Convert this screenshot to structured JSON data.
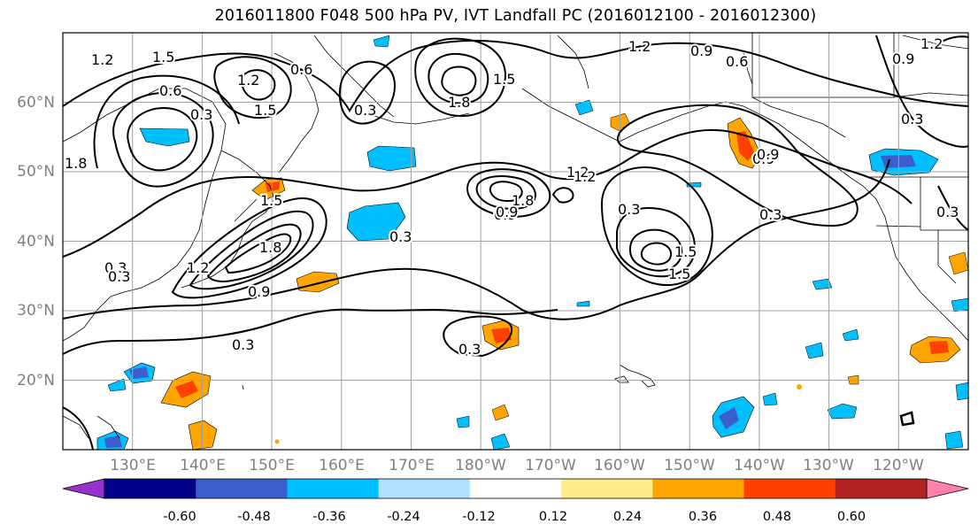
{
  "title": "2016011800 F048 500 hPa PV, IVT Landfall PC (2016012100 - 2016012300)",
  "lat_labels": [
    "60°N",
    "50°N",
    "40°N",
    "30°N",
    "20°N"
  ],
  "lon_labels": [
    "130°E",
    "140°E",
    "150°E",
    "160°E",
    "170°E",
    "180°W",
    "170°W",
    "160°W",
    "150°W",
    "140°W",
    "130°W",
    "120°W"
  ],
  "map_extent": {
    "lon_min": 120,
    "lon_max": 250,
    "lat_min": 10,
    "lat_max": 70,
    "grid_lons": [
      130,
      140,
      150,
      160,
      170,
      180,
      190,
      200,
      210,
      220,
      230,
      240
    ],
    "grid_lats": [
      20,
      30,
      40,
      50,
      60
    ]
  },
  "contour_labels": [
    "1.2",
    "1.5",
    "1.2",
    "0.6",
    "1.5",
    "1.8",
    "1.5",
    "1.2",
    "0.9",
    "0.6",
    "0.9",
    "0.3",
    "0.6",
    "0.3",
    "1.5",
    "1.2",
    "0.3",
    "1.8",
    "0.9",
    "1.5",
    "1.8",
    "0.3",
    "1.2",
    "0.9",
    "0.3",
    "0.9",
    "1.5",
    "0.3",
    "0.3",
    "0.3",
    "1.2",
    "1.8",
    "0.3",
    "0.9",
    "0.9",
    "1.2",
    "0.3",
    "0.3"
  ],
  "colorbar": {
    "ticks": [
      "-0.60",
      "-0.48",
      "-0.36",
      "-0.24",
      "-0.12",
      "0.12",
      "0.24",
      "0.36",
      "0.48",
      "0.60"
    ],
    "colors": [
      "#9932cc",
      "#00008b",
      "#3a5fcd",
      "#00bfff",
      "#b0e2ff",
      "#ffffff",
      "#ffec8b",
      "#ffa500",
      "#ff4000",
      "#b22222",
      "#ff82ab"
    ]
  }
}
